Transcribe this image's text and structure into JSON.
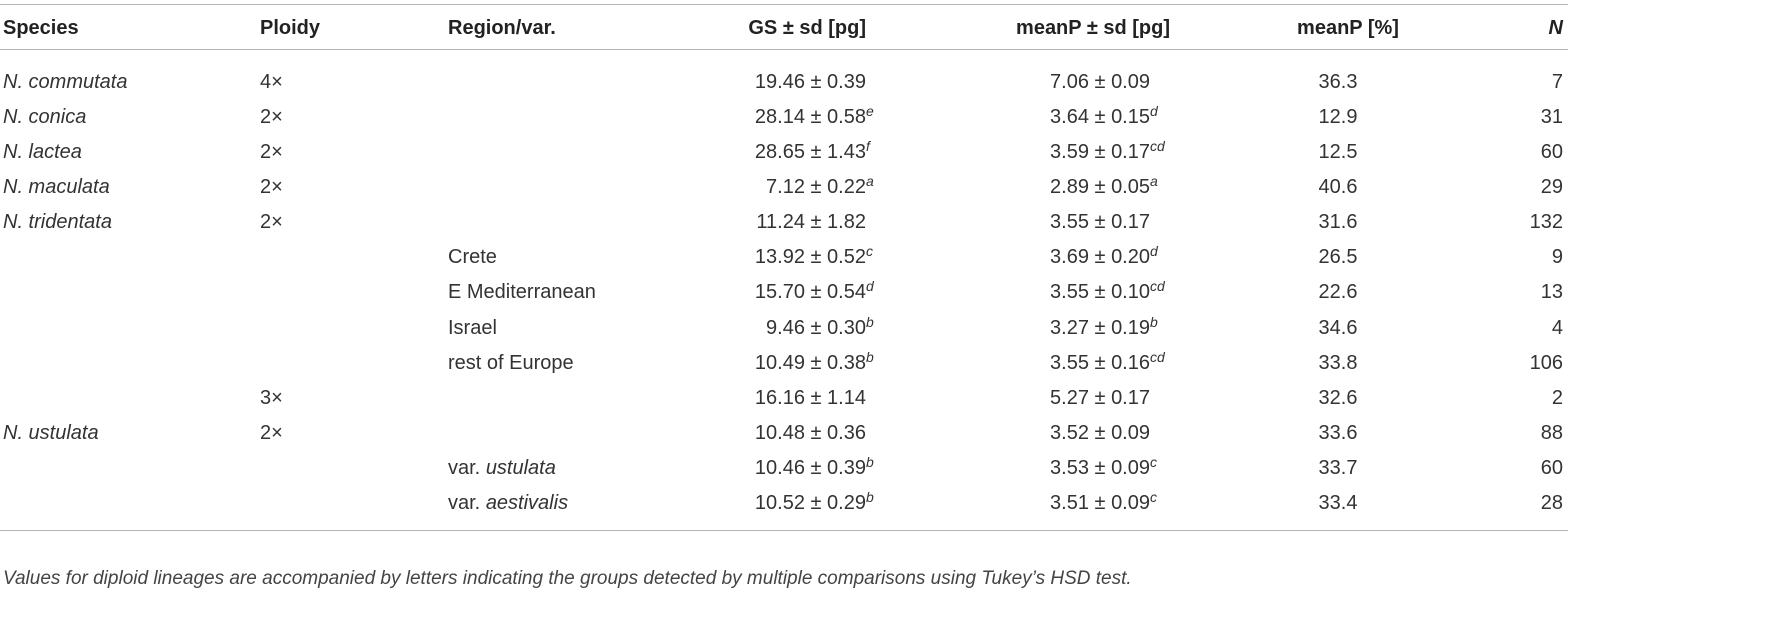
{
  "table": {
    "header": [
      "Species",
      "Ploidy",
      "Region/var.",
      "GS ± sd [pg]",
      "meanP ± sd [pg]",
      "meanP [%]",
      "N"
    ],
    "rows": [
      {
        "species": "N. commutata",
        "ploidy": "4×",
        "gs": {
          "value": "19.46 ± 0.39"
        },
        "meanp": {
          "value": "7.06 ± 0.09"
        },
        "pct": "36.3",
        "n": "7"
      },
      {
        "species": "N. conica",
        "ploidy": "2×",
        "gs": {
          "value": "28.14 ± 0.58",
          "sup": "e"
        },
        "meanp": {
          "value": "3.64 ± 0.15",
          "sup": "d"
        },
        "pct": "12.9",
        "n": "31"
      },
      {
        "species": "N. lactea",
        "ploidy": "2×",
        "gs": {
          "value": "28.65 ± 1.43",
          "sup": "f"
        },
        "meanp": {
          "value": "3.59 ± 0.17",
          "sup": "cd"
        },
        "pct": "12.5",
        "n": "60"
      },
      {
        "species": "N. maculata",
        "ploidy": "2×",
        "gs": {
          "value": "7.12 ± 0.22",
          "sup": "a"
        },
        "meanp": {
          "value": "2.89 ± 0.05",
          "sup": "a"
        },
        "pct": "40.6",
        "n": "29"
      },
      {
        "species": "N. tridentata",
        "ploidy": "2×",
        "gs": {
          "value": "11.24 ± 1.82"
        },
        "meanp": {
          "value": "3.55 ± 0.17"
        },
        "pct": "31.6",
        "n": "132"
      },
      {
        "region": {
          "text": "Crete"
        },
        "gs": {
          "value": "13.92 ± 0.52",
          "sup": "c"
        },
        "meanp": {
          "value": "3.69 ± 0.20",
          "sup": "d"
        },
        "pct": "26.5",
        "n": "9"
      },
      {
        "region": {
          "text": "E Mediterranean"
        },
        "gs": {
          "value": "15.70 ± 0.54",
          "sup": "d"
        },
        "meanp": {
          "value": "3.55 ± 0.10",
          "sup": "cd"
        },
        "pct": "22.6",
        "n": "13"
      },
      {
        "region": {
          "text": "Israel"
        },
        "gs": {
          "value": "9.46 ± 0.30",
          "sup": "b"
        },
        "meanp": {
          "value": "3.27 ± 0.19",
          "sup": "b"
        },
        "pct": "34.6",
        "n": "4"
      },
      {
        "region": {
          "text": "rest of Europe"
        },
        "gs": {
          "value": "10.49 ± 0.38",
          "sup": "b"
        },
        "meanp": {
          "value": "3.55 ± 0.16",
          "sup": "cd"
        },
        "pct": "33.8",
        "n": "106"
      },
      {
        "ploidy": "3×",
        "gs": {
          "value": "16.16 ± 1.14"
        },
        "meanp": {
          "value": "5.27 ± 0.17"
        },
        "pct": "32.6",
        "n": "2"
      },
      {
        "species": "N. ustulata",
        "ploidy": "2×",
        "gs": {
          "value": "10.48 ± 0.36"
        },
        "meanp": {
          "value": "3.52 ± 0.09"
        },
        "pct": "33.6",
        "n": "88"
      },
      {
        "region": {
          "text": "var.",
          "italic": "ustulata"
        },
        "gs": {
          "value": "10.46 ± 0.39",
          "sup": "b"
        },
        "meanp": {
          "value": "3.53 ± 0.09",
          "sup": "c"
        },
        "pct": "33.7",
        "n": "60"
      },
      {
        "region": {
          "text": "var.",
          "italic": "aestivalis"
        },
        "gs": {
          "value": "10.52 ± 0.29",
          "sup": "b"
        },
        "meanp": {
          "value": "3.51 ± 0.09",
          "sup": "c"
        },
        "pct": "33.4",
        "n": "28"
      }
    ],
    "caption": "Values for diploid lineages are accompanied by letters indicating the groups detected by multiple comparisons using Tukey’s HSD test."
  }
}
